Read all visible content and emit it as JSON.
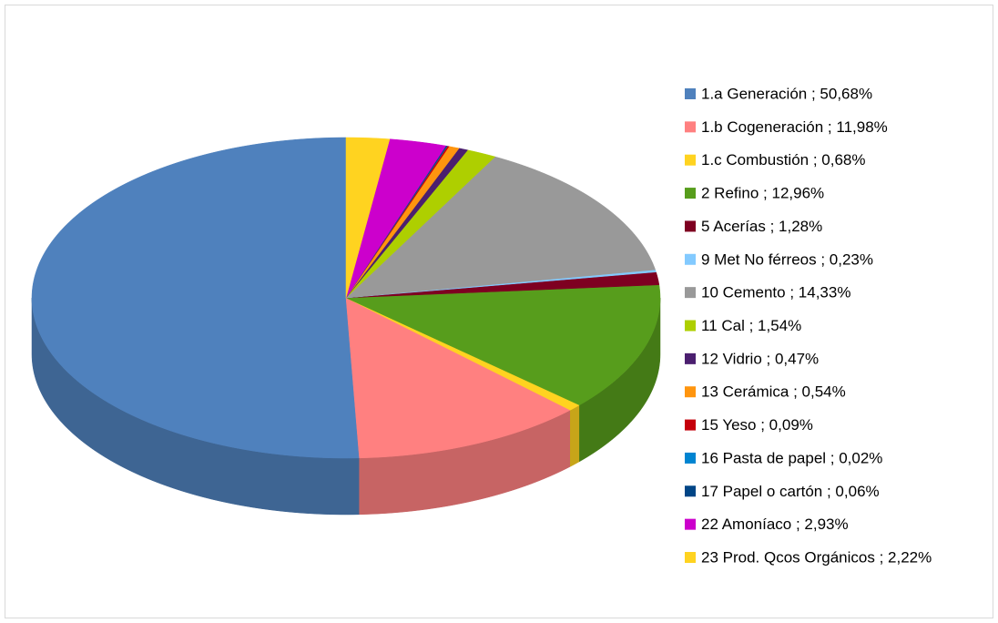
{
  "chart_data": {
    "type": "pie3d",
    "categories": [
      "1.a Generación ; 50,68%",
      "1.b Cogeneración ; 11,98%",
      "1.c Combustión ; 0,68%",
      "2 Refino ; 12,96%",
      "5 Acerías ; 1,28%",
      "9 Met No férreos ; 0,23%",
      "10 Cemento ; 14,33%",
      "11 Cal ; 1,54%",
      "12 Vidrio ; 0,47%",
      "13 Cerámica ; 0,54%",
      "15 Yeso ; 0,09%",
      "16 Pasta de papel ; 0,02%",
      "17 Papel o cartón ; 0,06%",
      "22 Amoníaco ; 2,93%",
      "23 Prod. Qcos Orgánicos ; 2,22%"
    ],
    "values": [
      50.68,
      11.98,
      0.68,
      12.96,
      1.28,
      0.23,
      14.33,
      1.54,
      0.47,
      0.54,
      0.09,
      0.02,
      0.06,
      2.93,
      2.22
    ],
    "colors": [
      "#4f81bd",
      "#ff8080",
      "#ffd320",
      "#579d1c",
      "#7e0021",
      "#83caff",
      "#999999",
      "#aecf00",
      "#4b1f6f",
      "#ff950e",
      "#c5000b",
      "#0084d1",
      "#004586",
      "#cc00cc",
      "#ffd320"
    ],
    "legend": "right"
  }
}
